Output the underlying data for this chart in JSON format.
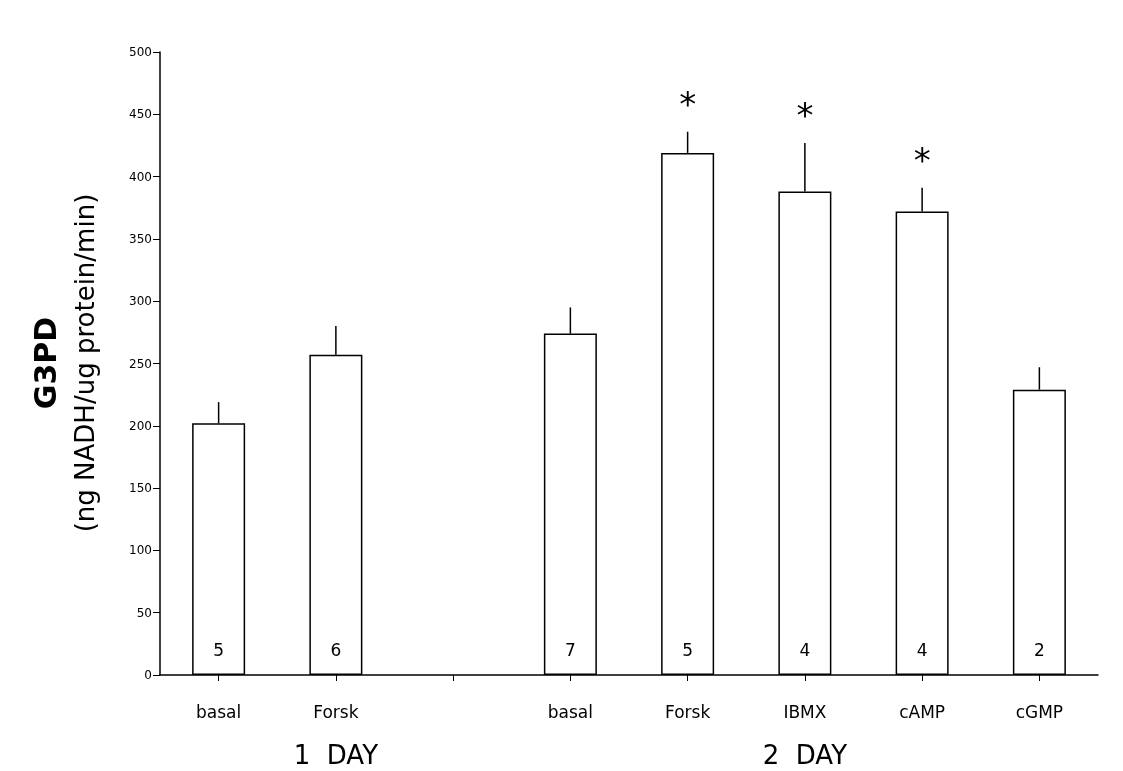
{
  "chart_data": {
    "type": "bar",
    "ylabel": "G3PD\n(ng NADH/ug protein/min)",
    "categories": [
      "basal",
      "Forsk",
      null,
      "basal",
      "Forsk",
      "IBMX",
      "cAMP",
      "cGMP"
    ],
    "values": [
      202,
      257,
      null,
      274,
      419,
      388,
      372,
      229
    ],
    "errors": [
      [
        202,
        219
      ],
      [
        257,
        280
      ],
      null,
      [
        274,
        295
      ],
      [
        419,
        436
      ],
      [
        388,
        427
      ],
      [
        372,
        391
      ],
      [
        229,
        247
      ]
    ],
    "color": "#ffffff",
    "ylim": [
      0,
      500
    ],
    "yticks": [
      0,
      50,
      100,
      150,
      200,
      250,
      300,
      350,
      400,
      450,
      500
    ],
    "grid": false,
    "annotations": [
      "5",
      "6",
      "7",
      "5",
      "4",
      "4",
      "2",
      "*",
      "*",
      "*",
      "1  DAY",
      "2  DAY"
    ]
  }
}
